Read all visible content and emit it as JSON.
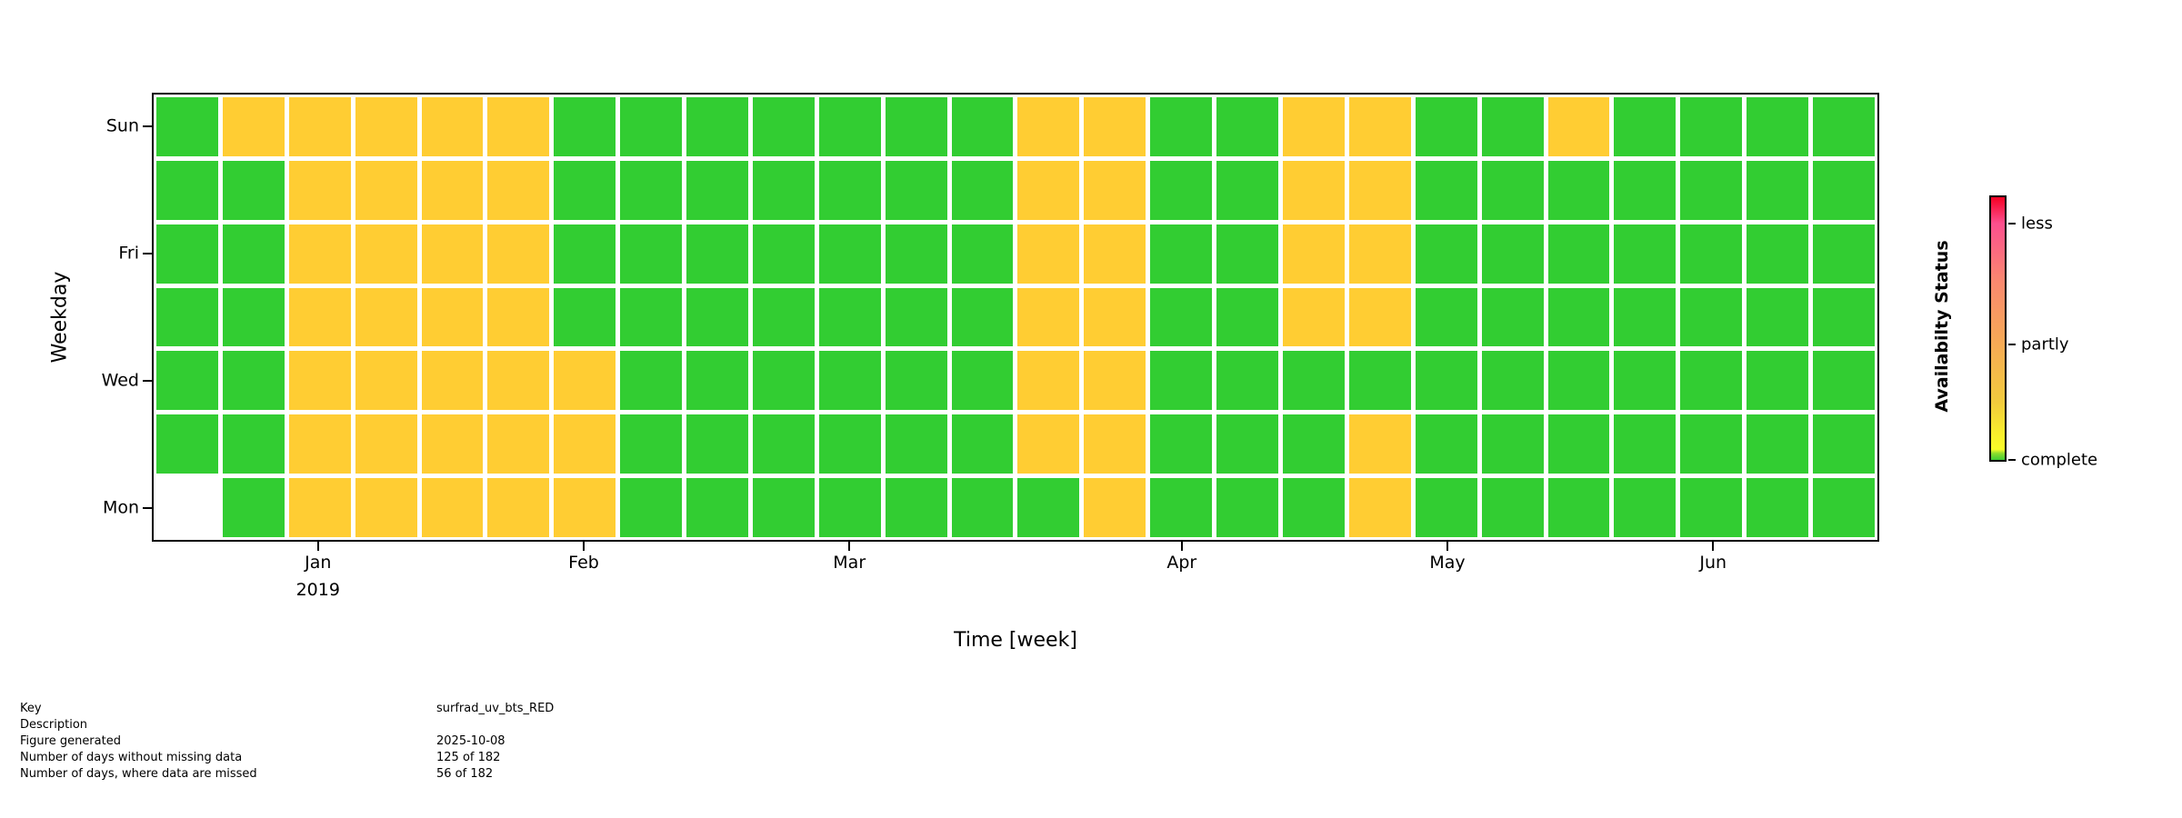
{
  "chart_data": {
    "type": "heatmap",
    "title": "",
    "xlabel": "Time [week]",
    "ylabel": "Weekday",
    "x_year_label": "2019",
    "x_ticks": [
      {
        "label": "Jan",
        "pos": 9.62,
        "has_year": true
      },
      {
        "label": "Feb",
        "pos": 25.0,
        "has_year": false
      },
      {
        "label": "Mar",
        "pos": 40.38,
        "has_year": false
      },
      {
        "label": "Apr",
        "pos": 59.62,
        "has_year": false
      },
      {
        "label": "May",
        "pos": 75.0,
        "has_year": false
      },
      {
        "label": "Jun",
        "pos": 90.38,
        "has_year": false
      }
    ],
    "y_ticks": [
      {
        "label": "Sun",
        "pos": 7.14
      },
      {
        "label": "Fri",
        "pos": 35.71
      },
      {
        "label": "Wed",
        "pos": 64.29
      },
      {
        "label": "Mon",
        "pos": 92.86
      }
    ],
    "row_order": [
      "Sun",
      "Sat",
      "Fri",
      "Thu",
      "Wed",
      "Tue",
      "Mon"
    ],
    "cell_legend": {
      "C": "complete",
      "P": "partly",
      "E": "no-data"
    },
    "weeks": [
      "CCCCCCE",
      "PCCCCCC",
      "PPPPPPP",
      "PPPPPPP",
      "PPPPPPP",
      "PPPPPPP",
      "CCCCPPP",
      "CCCCCCC",
      "CCCCCCC",
      "CCCCCCC",
      "CCCCCCC",
      "CCCCCCC",
      "CCCCCCC",
      "PPPPPPC",
      "PPPPPPP",
      "CCCCCCC",
      "CCCCCCC",
      "PPPPCCC",
      "PPPPCPP",
      "CCCCCCC",
      "CCCCCCC",
      "PCCCCCC",
      "CCCCCCC",
      "CCCCCCC",
      "CCCCCCC",
      "CCCCCCC"
    ],
    "colors": {
      "complete": "#32cd32",
      "partly": "#ffcd33",
      "empty": "#ffffff",
      "axis": "#000000"
    },
    "colorbar": {
      "title": "Availabilty Status",
      "ticks": [
        {
          "label": "less",
          "pos": 10
        },
        {
          "label": "partly",
          "pos": 56
        },
        {
          "label": "complete",
          "pos": 100
        }
      ],
      "gradient": [
        {
          "pos": 0,
          "color": "#f40023"
        },
        {
          "pos": 10,
          "color": "#fc4f8e"
        },
        {
          "pos": 32,
          "color": "#f9886f"
        },
        {
          "pos": 55,
          "color": "#f6a956"
        },
        {
          "pos": 78,
          "color": "#f2cb3d"
        },
        {
          "pos": 90,
          "color": "#f9ee2c"
        },
        {
          "pos": 96,
          "color": "#fafc28"
        },
        {
          "pos": 97.5,
          "color": "#8ddd2e"
        },
        {
          "pos": 100,
          "color": "#3fcc33"
        }
      ]
    }
  },
  "metadata": {
    "rows": [
      {
        "label": "Key",
        "value": "surfrad_uv_bts_RED"
      },
      {
        "label": "Description",
        "value": ""
      },
      {
        "label": "Figure generated",
        "value": "2025-10-08"
      },
      {
        "label": "Number of days without missing data",
        "value": "125 of 182"
      },
      {
        "label": "Number of days, where data are missed",
        "value": "56 of 182"
      }
    ]
  }
}
